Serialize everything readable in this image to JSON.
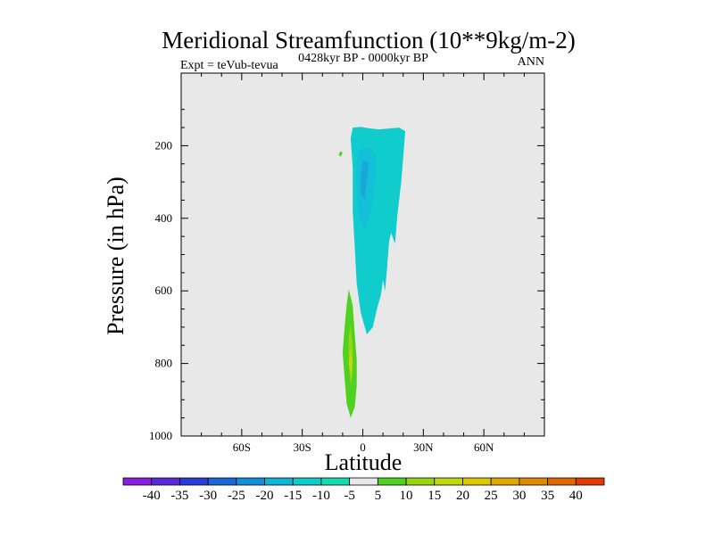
{
  "chart_data": {
    "type": "contour",
    "title": "Meridional Streamfunction (10**9kg/m-2)",
    "left_string": "Expt = teVub-tevua",
    "center_string": "0428kyr BP - 0000kyr BP",
    "right_string": "ANN",
    "xlabel": "Latitude",
    "ylabel": "Pressure (in hPa)",
    "xlim": [
      -90,
      90
    ],
    "ylim": [
      0,
      1000
    ],
    "y_reversed": true,
    "x_ticks": [
      {
        "value": -60,
        "label": "60S"
      },
      {
        "value": -30,
        "label": "30S"
      },
      {
        "value": 0,
        "label": "0"
      },
      {
        "value": 30,
        "label": "30N"
      },
      {
        "value": 60,
        "label": "60N"
      }
    ],
    "y_ticks": [
      {
        "value": 200,
        "label": "200"
      },
      {
        "value": 400,
        "label": "400"
      },
      {
        "value": 600,
        "label": "600"
      },
      {
        "value": 800,
        "label": "800"
      },
      {
        "value": 1000,
        "label": "1000"
      }
    ],
    "background_color": "#e8e8e8",
    "colorbar": {
      "levels": [
        "-40",
        "-35",
        "-30",
        "-25",
        "-20",
        "-15",
        "-10",
        "-5",
        "5",
        "10",
        "15",
        "20",
        "25",
        "30",
        "35",
        "40"
      ],
      "colors": [
        "#8a1ee0",
        "#5a28d8",
        "#2a3cd8",
        "#1866d8",
        "#1090d8",
        "#10b4d8",
        "#10cccc",
        "#14dcb0",
        "#e8e8e8",
        "#50d020",
        "#98d410",
        "#c0d810",
        "#dcc800",
        "#e0a800",
        "#e08a00",
        "#e06800",
        "#e03c00"
      ]
    },
    "contours": [
      {
        "name": "",
        "band": "-15 to -10",
        "color": "#10cccc",
        "points": [
          [
            -5,
            150
          ],
          [
            -1,
            148
          ],
          [
            3,
            152
          ],
          [
            8,
            155
          ],
          [
            14,
            152
          ],
          [
            18,
            150
          ],
          [
            21,
            160
          ],
          [
            20,
            235
          ],
          [
            19,
            300
          ],
          [
            17,
            400
          ],
          [
            16,
            470
          ],
          [
            14,
            440
          ],
          [
            13,
            465
          ],
          [
            12,
            540
          ],
          [
            11,
            600
          ],
          [
            10,
            570
          ],
          [
            9,
            610
          ],
          [
            7,
            650
          ],
          [
            5,
            700
          ],
          [
            2,
            720
          ],
          [
            -1,
            660
          ],
          [
            -3,
            580
          ],
          [
            -4,
            480
          ],
          [
            -5,
            380
          ],
          [
            -5,
            260
          ],
          [
            -6,
            180
          ]
        ]
      },
      {
        "name": "",
        "band": "-20 to -15",
        "color": "#14c0d8",
        "points": [
          [
            -2,
            210
          ],
          [
            3,
            205
          ],
          [
            7,
            230
          ],
          [
            6,
            300
          ],
          [
            4,
            390
          ],
          [
            1,
            430
          ],
          [
            -2,
            400
          ],
          [
            -3,
            310
          ],
          [
            -3,
            240
          ]
        ]
      },
      {
        "name": "",
        "band": "-25 to -20",
        "color": "#1aa8d8",
        "points": [
          [
            0,
            240
          ],
          [
            3,
            245
          ],
          [
            2,
            300
          ],
          [
            1,
            350
          ],
          [
            -1,
            330
          ],
          [
            -1,
            280
          ]
        ]
      },
      {
        "name": "",
        "band": "5 to 10",
        "color": "#50d020",
        "points": [
          [
            -11,
            215
          ],
          [
            -10,
            220
          ],
          [
            -11,
            230
          ],
          [
            -12,
            225
          ]
        ]
      },
      {
        "name": "",
        "band": "5 to 10",
        "color": "#50d020",
        "points": [
          [
            -7,
            595
          ],
          [
            -5,
            640
          ],
          [
            -4,
            720
          ],
          [
            -3,
            790
          ],
          [
            -3,
            860
          ],
          [
            -4,
            920
          ],
          [
            -6,
            950
          ],
          [
            -8,
            910
          ],
          [
            -9,
            840
          ],
          [
            -10,
            770
          ],
          [
            -9,
            700
          ],
          [
            -8,
            640
          ]
        ]
      },
      {
        "name": "",
        "band": "10 to 15",
        "color": "#98d410",
        "points": [
          [
            -6,
            690
          ],
          [
            -5,
            760
          ],
          [
            -5,
            830
          ],
          [
            -6,
            860
          ],
          [
            -7,
            800
          ],
          [
            -7,
            730
          ]
        ]
      },
      {
        "name": "",
        "band": "15 to 20",
        "color": "#c0d810",
        "points": [
          [
            -6,
            760
          ],
          [
            -5,
            800
          ],
          [
            -6,
            830
          ],
          [
            -7,
            800
          ]
        ]
      }
    ]
  }
}
